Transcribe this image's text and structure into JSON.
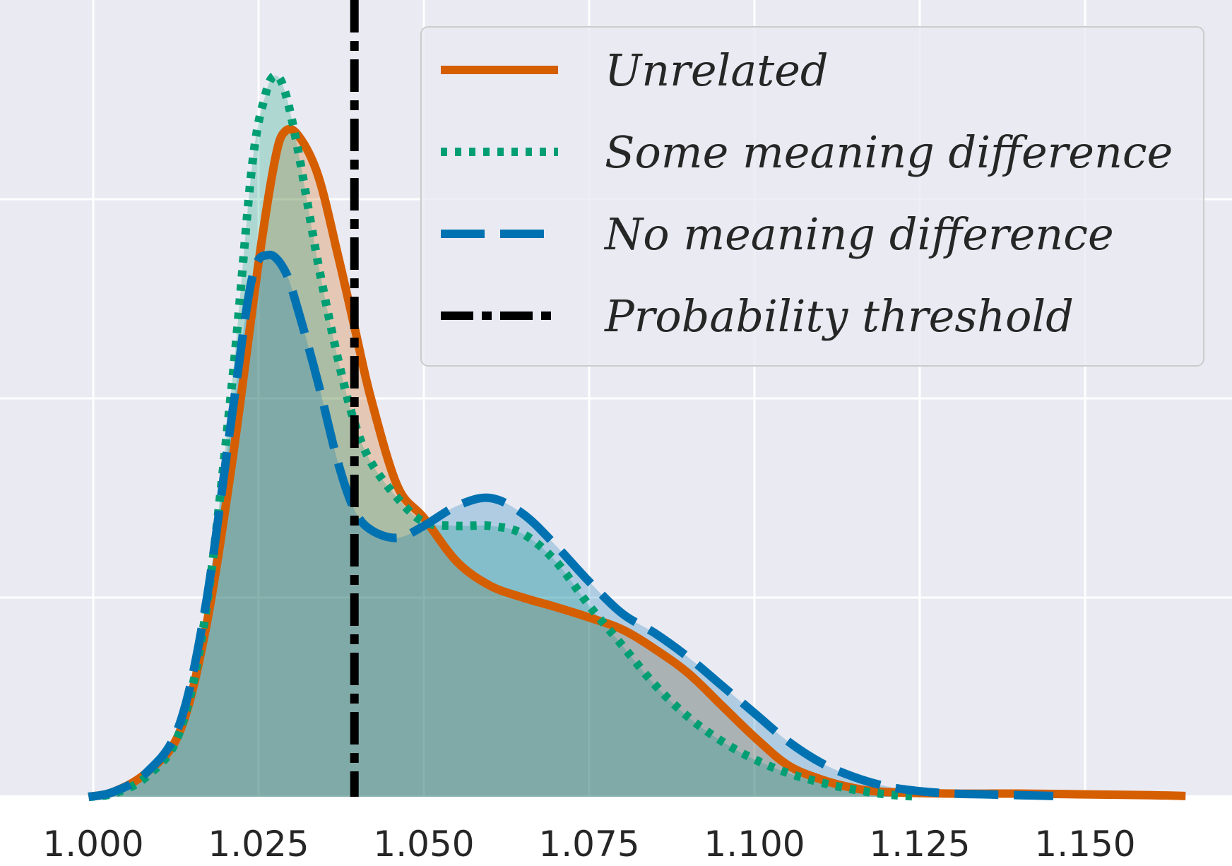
{
  "chart_data": {
    "type": "area",
    "title": "",
    "xlabel": "",
    "ylabel": "",
    "xlim": [
      0.9935,
      1.166
    ],
    "ylim": [
      0,
      1.0
    ],
    "grid": true,
    "background": "#eaeaf2",
    "x_ticks": [
      1.0,
      1.025,
      1.05,
      1.075,
      1.1,
      1.125,
      1.15
    ],
    "x_tick_labels": [
      "1.000",
      "1.025",
      "1.050",
      "1.075",
      "1.100",
      "1.125",
      "1.150"
    ],
    "y_gridlines": [
      0.25,
      0.5,
      0.75
    ],
    "legend_position": "top-right",
    "threshold": {
      "name": "Probability threshold",
      "x": 1.0395,
      "color": "#000000",
      "style": "dashdot"
    },
    "series": [
      {
        "name": "Unrelated",
        "color": "#d55e00",
        "style": "solid",
        "points": [
          [
            0.9993,
            0.0
          ],
          [
            1.003,
            0.006
          ],
          [
            1.008,
            0.03
          ],
          [
            1.013,
            0.08
          ],
          [
            1.017,
            0.21
          ],
          [
            1.021,
            0.42
          ],
          [
            1.025,
            0.67
          ],
          [
            1.0275,
            0.8
          ],
          [
            1.029,
            0.835
          ],
          [
            1.031,
            0.83
          ],
          [
            1.034,
            0.78
          ],
          [
            1.037,
            0.68
          ],
          [
            1.0395,
            0.59
          ],
          [
            1.042,
            0.5
          ],
          [
            1.046,
            0.39
          ],
          [
            1.05,
            0.35
          ],
          [
            1.055,
            0.295
          ],
          [
            1.06,
            0.265
          ],
          [
            1.065,
            0.25
          ],
          [
            1.07,
            0.238
          ],
          [
            1.075,
            0.225
          ],
          [
            1.08,
            0.21
          ],
          [
            1.085,
            0.185
          ],
          [
            1.09,
            0.155
          ],
          [
            1.095,
            0.115
          ],
          [
            1.1,
            0.075
          ],
          [
            1.105,
            0.04
          ],
          [
            1.11,
            0.022
          ],
          [
            1.115,
            0.011
          ],
          [
            1.12,
            0.006
          ],
          [
            1.13,
            0.004
          ],
          [
            1.14,
            0.004
          ],
          [
            1.15,
            0.003
          ],
          [
            1.16,
            0.002
          ],
          [
            1.1652,
            0.001
          ]
        ]
      },
      {
        "name": "Some meaning difference",
        "color": "#009e73",
        "style": "dotted",
        "points": [
          [
            0.9993,
            0.0
          ],
          [
            1.003,
            0.004
          ],
          [
            1.008,
            0.025
          ],
          [
            1.013,
            0.08
          ],
          [
            1.017,
            0.23
          ],
          [
            1.021,
            0.52
          ],
          [
            1.024,
            0.79
          ],
          [
            1.026,
            0.88
          ],
          [
            1.0275,
            0.905
          ],
          [
            1.029,
            0.885
          ],
          [
            1.031,
            0.81
          ],
          [
            1.034,
            0.67
          ],
          [
            1.037,
            0.55
          ],
          [
            1.0395,
            0.47
          ],
          [
            1.042,
            0.42
          ],
          [
            1.046,
            0.375
          ],
          [
            1.05,
            0.345
          ],
          [
            1.055,
            0.34
          ],
          [
            1.06,
            0.34
          ],
          [
            1.065,
            0.33
          ],
          [
            1.07,
            0.295
          ],
          [
            1.075,
            0.24
          ],
          [
            1.08,
            0.19
          ],
          [
            1.085,
            0.14
          ],
          [
            1.09,
            0.1
          ],
          [
            1.095,
            0.07
          ],
          [
            1.1,
            0.047
          ],
          [
            1.105,
            0.03
          ],
          [
            1.11,
            0.018
          ],
          [
            1.115,
            0.009
          ],
          [
            1.12,
            0.003
          ],
          [
            1.125,
            0.0
          ]
        ]
      },
      {
        "name": "No meaning difference",
        "color": "#0072b2",
        "style": "dashed",
        "points": [
          [
            0.9993,
            0.0
          ],
          [
            1.003,
            0.006
          ],
          [
            1.008,
            0.03
          ],
          [
            1.013,
            0.09
          ],
          [
            1.017,
            0.24
          ],
          [
            1.021,
            0.48
          ],
          [
            1.024,
            0.65
          ],
          [
            1.0265,
            0.68
          ],
          [
            1.029,
            0.66
          ],
          [
            1.031,
            0.61
          ],
          [
            1.034,
            0.52
          ],
          [
            1.037,
            0.42
          ],
          [
            1.0395,
            0.36
          ],
          [
            1.042,
            0.335
          ],
          [
            1.046,
            0.325
          ],
          [
            1.05,
            0.34
          ],
          [
            1.055,
            0.365
          ],
          [
            1.06,
            0.375
          ],
          [
            1.065,
            0.355
          ],
          [
            1.07,
            0.315
          ],
          [
            1.075,
            0.27
          ],
          [
            1.08,
            0.23
          ],
          [
            1.085,
            0.205
          ],
          [
            1.09,
            0.175
          ],
          [
            1.095,
            0.14
          ],
          [
            1.1,
            0.105
          ],
          [
            1.105,
            0.07
          ],
          [
            1.11,
            0.043
          ],
          [
            1.115,
            0.025
          ],
          [
            1.12,
            0.013
          ],
          [
            1.125,
            0.007
          ],
          [
            1.13,
            0.004
          ],
          [
            1.135,
            0.003
          ],
          [
            1.14,
            0.002
          ],
          [
            1.1452,
            0.001
          ]
        ]
      }
    ]
  }
}
